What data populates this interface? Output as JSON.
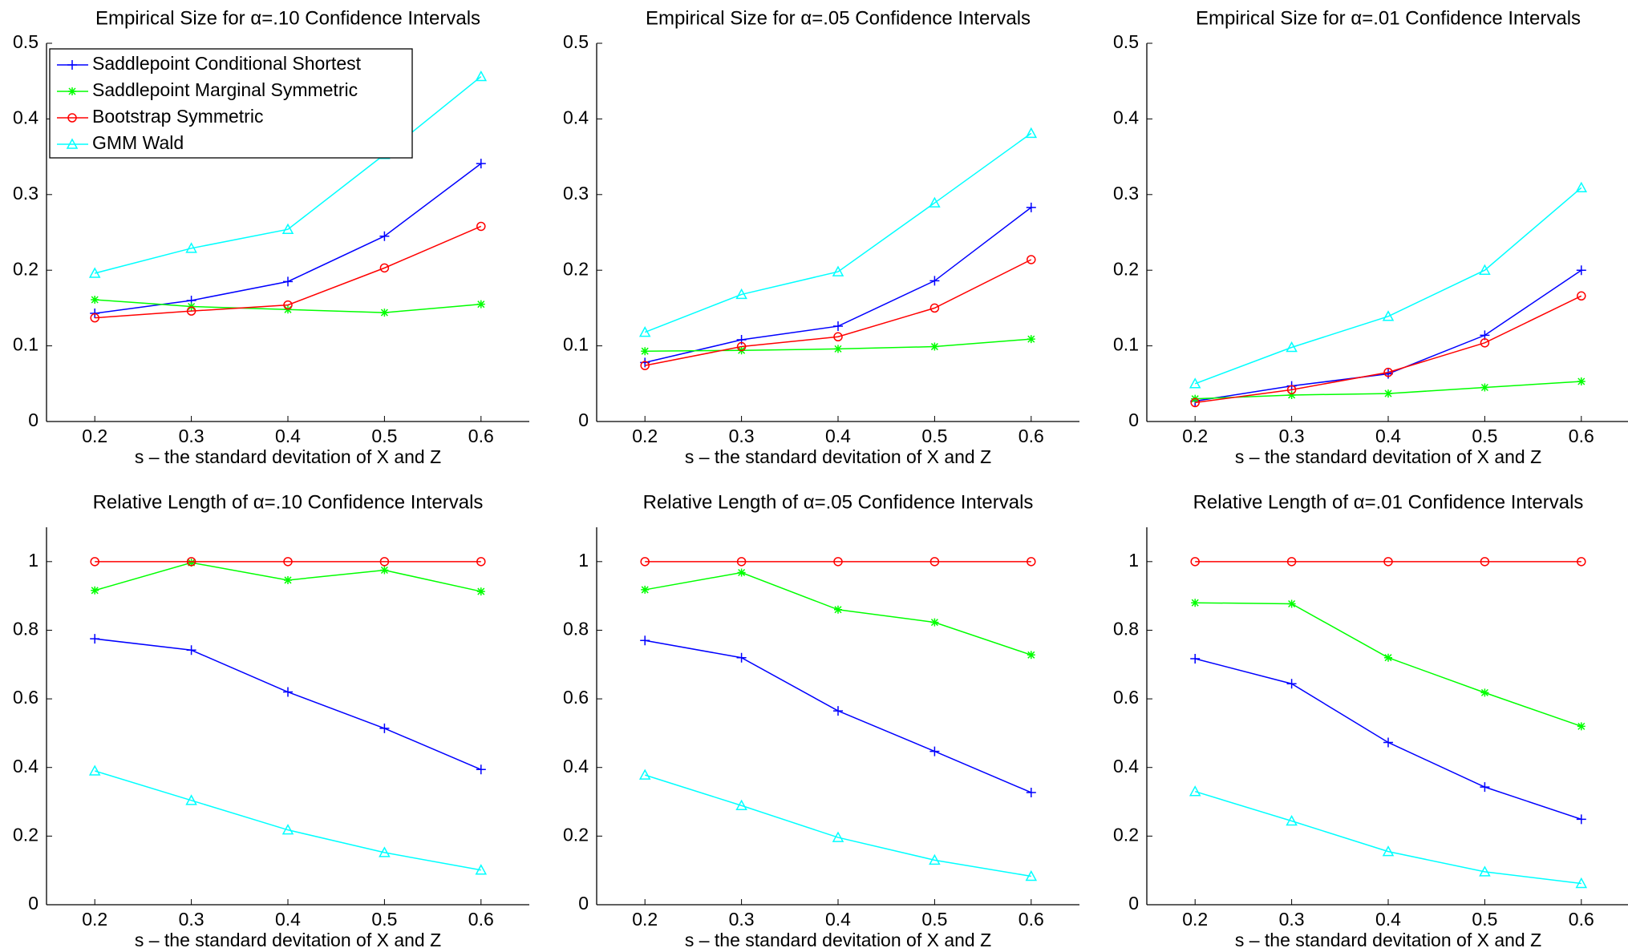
{
  "chart_data": [
    {
      "type": "line",
      "title": "Empirical Size for α=.10 Confidence Intervals",
      "x_label": "s – the standard devitation of X and Z",
      "x": [
        0.2,
        0.3,
        0.4,
        0.5,
        0.6
      ],
      "xlim": [
        0.15,
        0.65
      ],
      "xticks": [
        0.2,
        0.3,
        0.4,
        0.5,
        0.6
      ],
      "ylim": [
        0,
        0.5
      ],
      "yticks": [
        0,
        0.1,
        0.2,
        0.3,
        0.4,
        0.5
      ],
      "legend": "upper left",
      "series": [
        {
          "name": "Saddlepoint Conditional Shortest",
          "color": "#0000ff",
          "marker": "+",
          "values": [
            0.143,
            0.16,
            0.185,
            0.245,
            0.341
          ]
        },
        {
          "name": "Saddlepoint Marginal Symmetric",
          "color": "#00ff00",
          "marker": "*",
          "values": [
            0.161,
            0.152,
            0.148,
            0.144,
            0.155
          ]
        },
        {
          "name": "Bootstrap Symmetric",
          "color": "#ff0000",
          "marker": "o",
          "values": [
            0.137,
            0.146,
            0.154,
            0.203,
            0.258
          ]
        },
        {
          "name": "GMM Wald",
          "color": "#00ffff",
          "marker": "^",
          "values": [
            0.196,
            0.229,
            0.254,
            0.353,
            0.456
          ]
        }
      ]
    },
    {
      "type": "line",
      "title": "Empirical Size for α=.05 Confidence Intervals",
      "x_label": "s – the standard devitation of X and Z",
      "x": [
        0.2,
        0.3,
        0.4,
        0.5,
        0.6
      ],
      "xlim": [
        0.15,
        0.65
      ],
      "xticks": [
        0.2,
        0.3,
        0.4,
        0.5,
        0.6
      ],
      "ylim": [
        0,
        0.5
      ],
      "yticks": [
        0,
        0.1,
        0.2,
        0.3,
        0.4,
        0.5
      ],
      "series": [
        {
          "color": "#0000ff",
          "marker": "+",
          "values": [
            0.078,
            0.108,
            0.126,
            0.186,
            0.283
          ]
        },
        {
          "color": "#00ff00",
          "marker": "*",
          "values": [
            0.093,
            0.094,
            0.096,
            0.099,
            0.109
          ]
        },
        {
          "color": "#ff0000",
          "marker": "o",
          "values": [
            0.074,
            0.099,
            0.112,
            0.15,
            0.214
          ]
        },
        {
          "color": "#00ffff",
          "marker": "^",
          "values": [
            0.118,
            0.168,
            0.198,
            0.289,
            0.381
          ]
        }
      ]
    },
    {
      "type": "line",
      "title": "Empirical Size for α=.01 Confidence Intervals",
      "x_label": "s – the standard devitation of X and Z",
      "x": [
        0.2,
        0.3,
        0.4,
        0.5,
        0.6
      ],
      "xlim": [
        0.15,
        0.65
      ],
      "xticks": [
        0.2,
        0.3,
        0.4,
        0.5,
        0.6
      ],
      "ylim": [
        0,
        0.5
      ],
      "yticks": [
        0,
        0.1,
        0.2,
        0.3,
        0.4,
        0.5
      ],
      "series": [
        {
          "color": "#0000ff",
          "marker": "+",
          "values": [
            0.027,
            0.047,
            0.063,
            0.114,
            0.2
          ]
        },
        {
          "color": "#00ff00",
          "marker": "*",
          "values": [
            0.03,
            0.035,
            0.037,
            0.045,
            0.053
          ]
        },
        {
          "color": "#ff0000",
          "marker": "o",
          "values": [
            0.025,
            0.042,
            0.065,
            0.104,
            0.166
          ]
        },
        {
          "color": "#00ffff",
          "marker": "^",
          "values": [
            0.05,
            0.098,
            0.139,
            0.2,
            0.309
          ]
        }
      ]
    },
    {
      "type": "line",
      "title": "Relative Length of α=.10 Confidence Intervals",
      "x_label": "s – the standard devitation of X and Z",
      "x": [
        0.2,
        0.3,
        0.4,
        0.5,
        0.6
      ],
      "xlim": [
        0.15,
        0.65
      ],
      "xticks": [
        0.2,
        0.3,
        0.4,
        0.5,
        0.6
      ],
      "ylim": [
        0,
        1.1
      ],
      "yticks": [
        0,
        0.2,
        0.4,
        0.6,
        0.8,
        1
      ],
      "series": [
        {
          "color": "#0000ff",
          "marker": "+",
          "values": [
            0.775,
            0.742,
            0.62,
            0.514,
            0.394
          ]
        },
        {
          "color": "#00ff00",
          "marker": "*",
          "values": [
            0.916,
            0.997,
            0.946,
            0.975,
            0.913
          ]
        },
        {
          "color": "#ff0000",
          "marker": "o",
          "values": [
            1,
            1,
            1,
            1,
            1
          ]
        },
        {
          "color": "#00ffff",
          "marker": "^",
          "values": [
            0.39,
            0.304,
            0.218,
            0.152,
            0.101
          ]
        }
      ]
    },
    {
      "type": "line",
      "title": "Relative Length of α=.05 Confidence Intervals",
      "x_label": "s – the standard devitation of X and Z",
      "x": [
        0.2,
        0.3,
        0.4,
        0.5,
        0.6
      ],
      "xlim": [
        0.15,
        0.65
      ],
      "xticks": [
        0.2,
        0.3,
        0.4,
        0.5,
        0.6
      ],
      "ylim": [
        0,
        1.1
      ],
      "yticks": [
        0,
        0.2,
        0.4,
        0.6,
        0.8,
        1
      ],
      "series": [
        {
          "color": "#0000ff",
          "marker": "+",
          "values": [
            0.77,
            0.72,
            0.565,
            0.447,
            0.327
          ]
        },
        {
          "color": "#00ff00",
          "marker": "*",
          "values": [
            0.918,
            0.968,
            0.86,
            0.823,
            0.728
          ]
        },
        {
          "color": "#ff0000",
          "marker": "o",
          "values": [
            1,
            1,
            1,
            1,
            1
          ]
        },
        {
          "color": "#00ffff",
          "marker": "^",
          "values": [
            0.378,
            0.289,
            0.196,
            0.13,
            0.083
          ]
        }
      ]
    },
    {
      "type": "line",
      "title": "Relative Length of α=.01 Confidence Intervals",
      "x_label": "s – the standard devitation of X and Z",
      "x": [
        0.2,
        0.3,
        0.4,
        0.5,
        0.6
      ],
      "xlim": [
        0.15,
        0.65
      ],
      "xticks": [
        0.2,
        0.3,
        0.4,
        0.5,
        0.6
      ],
      "ylim": [
        0,
        1.1
      ],
      "yticks": [
        0,
        0.2,
        0.4,
        0.6,
        0.8,
        1
      ],
      "series": [
        {
          "color": "#0000ff",
          "marker": "+",
          "values": [
            0.717,
            0.644,
            0.473,
            0.343,
            0.249
          ]
        },
        {
          "color": "#00ff00",
          "marker": "*",
          "values": [
            0.88,
            0.877,
            0.72,
            0.618,
            0.52
          ]
        },
        {
          "color": "#ff0000",
          "marker": "o",
          "values": [
            1,
            1,
            1,
            1,
            1
          ]
        },
        {
          "color": "#00ffff",
          "marker": "^",
          "values": [
            0.33,
            0.244,
            0.155,
            0.096,
            0.062
          ]
        }
      ]
    }
  ]
}
